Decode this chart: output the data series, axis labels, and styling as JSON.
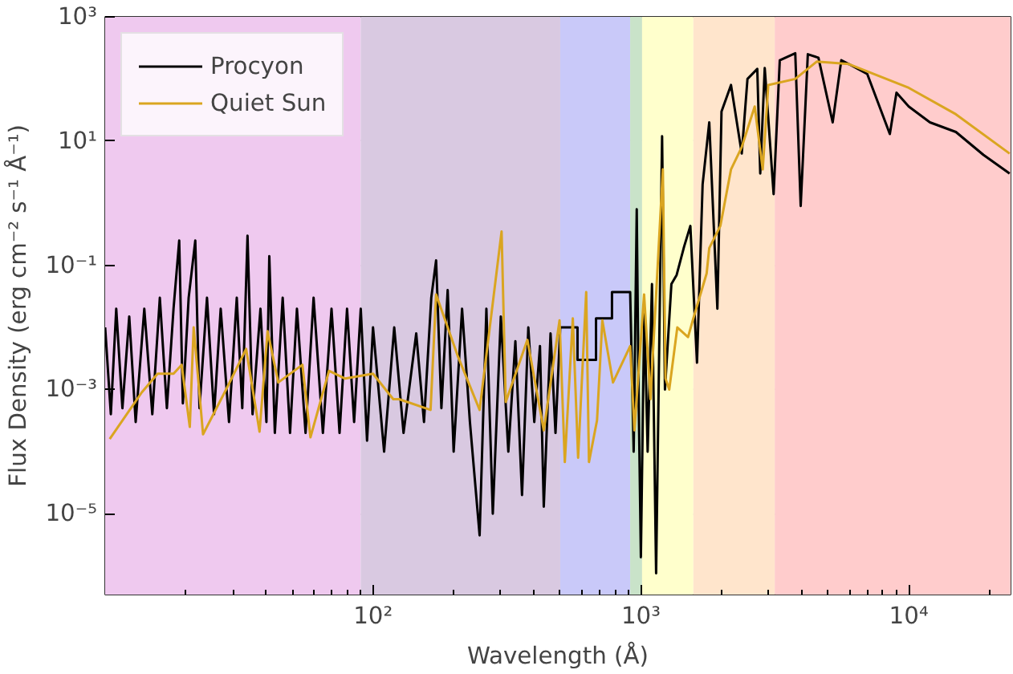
{
  "chart_data": {
    "type": "line",
    "xlabel": "Wavelength (Å)",
    "ylabel": "Flux Density (erg cm⁻² s⁻¹ Å⁻¹)",
    "log": "xy",
    "grid": true,
    "legend": "top left",
    "xlim": [
      10,
      24000
    ],
    "ylim": [
      5e-07,
      1000
    ],
    "xticks": [
      {
        "value": 100,
        "label": "10²"
      },
      {
        "value": 1000,
        "label": "10³"
      },
      {
        "value": 10000,
        "label": "10⁴"
      }
    ],
    "yticks": [
      {
        "value": 1e-05,
        "label": "10⁻⁵"
      },
      {
        "value": 0.001,
        "label": "10⁻³"
      },
      {
        "value": 0.1,
        "label": "10⁻¹"
      },
      {
        "value": 10,
        "label": "10¹"
      },
      {
        "value": 1000,
        "label": "10³"
      }
    ],
    "bands": [
      {
        "axis": "x",
        "from": 10,
        "to": 90,
        "color": "#efc9ef"
      },
      {
        "axis": "x",
        "from": 90,
        "to": 500,
        "color": "#d9c9e1"
      },
      {
        "axis": "x",
        "from": 500,
        "to": 912,
        "color": "#c9c9f9"
      },
      {
        "axis": "x",
        "from": 912,
        "to": 1010,
        "color": "#c9e3c9"
      },
      {
        "axis": "x",
        "from": 1010,
        "to": 1570,
        "color": "#ffffcc"
      },
      {
        "axis": "x",
        "from": 1570,
        "to": 3160,
        "color": "#ffe5cc"
      },
      {
        "axis": "x",
        "from": 3160,
        "to": 24000,
        "color": "#ffcccc"
      }
    ],
    "series": [
      {
        "name": "Procyon",
        "color": "#000000",
        "x": [
          10,
          10.5,
          11,
          11.6,
          12.3,
          13,
          14,
          15,
          16,
          17,
          18,
          18.9,
          19.5,
          20.5,
          21.7,
          22.5,
          24,
          25.5,
          27,
          29,
          31,
          32.5,
          34,
          35.5,
          38,
          40,
          41,
          43,
          46,
          49,
          52,
          56,
          60,
          65,
          70,
          75,
          80,
          85,
          90,
          95,
          100,
          110,
          120,
          130,
          145,
          155,
          165,
          172,
          180,
          190,
          200,
          215,
          230,
          250,
          265,
          280,
          300,
          320,
          340,
          360,
          380,
          400,
          420,
          434,
          460,
          480,
          500,
          580,
          580,
          680,
          680,
          780,
          780,
          912,
          940,
          965,
          980,
          1000,
          1030,
          1060,
          1100,
          1140,
          1200,
          1230,
          1300,
          1360,
          1450,
          1530,
          1620,
          1700,
          1800,
          1930,
          2000,
          2170,
          2380,
          2500,
          2720,
          2790,
          2900,
          3130,
          3300,
          3770,
          3950,
          4200,
          4600,
          5200,
          5600,
          5970,
          7000,
          8500,
          9000,
          10000,
          12000,
          15000,
          19000,
          23800
        ],
        "values": [
          0.01,
          0.0004,
          0.02,
          0.0005,
          0.015,
          0.0003,
          0.02,
          0.0004,
          0.03,
          0.0005,
          0.02,
          0.25,
          0.0006,
          0.03,
          0.25,
          0.0005,
          0.03,
          0.0004,
          0.02,
          0.0003,
          0.03,
          0.0005,
          0.3,
          0.0004,
          0.02,
          0.0003,
          0.14,
          0.0002,
          0.03,
          0.0002,
          0.02,
          0.0002,
          0.03,
          0.0002,
          0.02,
          0.0002,
          0.02,
          0.0003,
          0.02,
          0.00015,
          0.01,
          0.0001,
          0.01,
          0.0002,
          0.008,
          0.0003,
          0.03,
          0.12,
          0.0005,
          0.04,
          0.0001,
          0.02,
          0.0003,
          4.5e-06,
          0.02,
          1e-05,
          0.015,
          0.0001,
          0.006,
          2e-05,
          0.01,
          0.0003,
          0.005,
          1.3e-05,
          0.008,
          0.0002,
          0.01,
          0.01,
          0.003,
          0.003,
          0.014,
          0.014,
          0.037,
          0.037,
          0.0001,
          0.8,
          0.001,
          2e-06,
          0.02,
          0.0001,
          0.05,
          1.1e-06,
          12,
          0.001,
          0.05,
          0.07,
          0.2,
          0.43,
          0.0027,
          2,
          20,
          0.02,
          30,
          80,
          6.3,
          100,
          145,
          3,
          150,
          1.4,
          200,
          260,
          0.9,
          250,
          220,
          20,
          200,
          174,
          120,
          13,
          60,
          36,
          20,
          14,
          6,
          3
        ]
      },
      {
        "name": "Quiet Sun",
        "color": "#daa520",
        "x": [
          10.4,
          13.7,
          15.7,
          18,
          19.3,
          20.7,
          21.4,
          23.2,
          28.6,
          33.6,
          37.7,
          40.4,
          44.3,
          54.5,
          58.4,
          68.5,
          78.7,
          100,
          119,
          125,
          164,
          172,
          207,
          250,
          302,
          313,
          377,
          434,
          497,
          520,
          557,
          583,
          625,
          640,
          686,
          718,
          787,
          912,
          946,
          1028,
          1086,
          1208,
          1236,
          1276,
          1368,
          1500,
          1570,
          1760,
          1800,
          1980,
          2170,
          2380,
          2660,
          2850,
          2990,
          3770,
          4530,
          5970,
          10000,
          15000,
          23800
        ],
        "values": [
          0.00016,
          0.0009,
          0.0018,
          0.0018,
          0.0025,
          0.00025,
          0.01,
          0.00019,
          0.0011,
          0.0045,
          0.00021,
          0.0087,
          0.0013,
          0.0025,
          0.00017,
          0.002,
          0.0015,
          0.0018,
          0.0007,
          0.0007,
          0.00047,
          0.034,
          0.0035,
          0.00047,
          0.35,
          0.00063,
          0.0063,
          0.00022,
          0.013,
          6.8e-05,
          0.014,
          8e-05,
          0.037,
          6.8e-05,
          0.00032,
          0.013,
          0.0013,
          0.005,
          0.00022,
          0.034,
          0.0007,
          3.5,
          0.0015,
          0.001,
          0.01,
          0.007,
          0.014,
          0.074,
          0.19,
          0.43,
          3.5,
          8,
          36,
          3.5,
          80,
          100,
          190,
          174,
          72,
          27,
          6.3
        ]
      }
    ]
  }
}
